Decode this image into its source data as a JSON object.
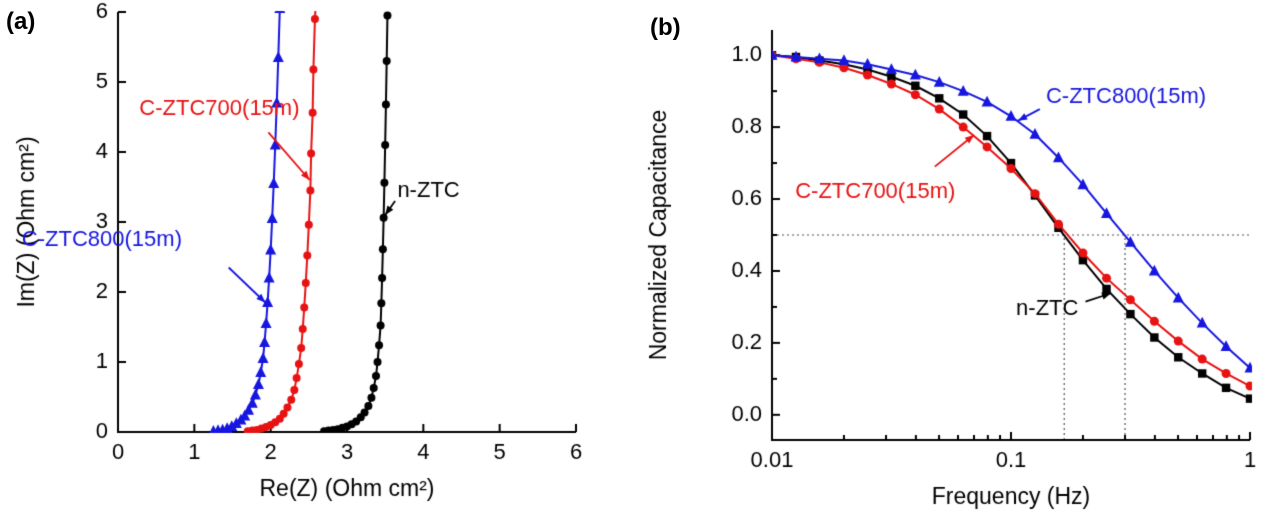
{
  "figure": {
    "background": "#ffffff"
  },
  "colors": {
    "blue": "#1616e0",
    "red": "#e81212",
    "black": "#000000",
    "guide": "#555555"
  },
  "chart_data": [
    {
      "type": "line",
      "panel_label": "(a)",
      "xlabel": "Re(Z) (Ohm cm²)",
      "ylabel": "Im(Z) (Ohm cm²)",
      "xscale": "linear",
      "xlim": [
        0,
        6
      ],
      "ylim": [
        0,
        6
      ],
      "xticks": [
        0,
        1,
        2,
        3,
        4,
        5,
        6
      ],
      "xtick_labels": [
        "0",
        "1",
        "2",
        "3",
        "4",
        "5",
        "6"
      ],
      "yticks": [
        0,
        1,
        2,
        3,
        4,
        5,
        6
      ],
      "ytick_labels": [
        "0",
        "1",
        "2",
        "3",
        "4",
        "5",
        "6"
      ],
      "grid": false,
      "legend": "none (direct labels with arrows)",
      "series": [
        {
          "name": "C-ZTC800(15m)",
          "color": "#1616e0",
          "marker": "triangle",
          "msize": 5,
          "points": [
            [
              1.25,
              0.01
            ],
            [
              1.31,
              0.02
            ],
            [
              1.37,
              0.03
            ],
            [
              1.43,
              0.05
            ],
            [
              1.49,
              0.08
            ],
            [
              1.55,
              0.12
            ],
            [
              1.61,
              0.17
            ],
            [
              1.66,
              0.23
            ],
            [
              1.71,
              0.31
            ],
            [
              1.76,
              0.41
            ],
            [
              1.8,
              0.53
            ],
            [
              1.84,
              0.68
            ],
            [
              1.87,
              0.85
            ],
            [
              1.9,
              1.05
            ],
            [
              1.92,
              1.28
            ],
            [
              1.94,
              1.55
            ],
            [
              1.96,
              1.85
            ],
            [
              1.98,
              2.2
            ],
            [
              2.0,
              2.6
            ],
            [
              2.02,
              3.05
            ],
            [
              2.04,
              3.55
            ],
            [
              2.06,
              4.1
            ],
            [
              2.08,
              4.7
            ],
            [
              2.1,
              5.35
            ],
            [
              2.12,
              6.05
            ]
          ]
        },
        {
          "name": "C-ZTC700(15m)",
          "color": "#e81212",
          "marker": "circle",
          "msize": 4,
          "points": [
            [
              1.7,
              0.01
            ],
            [
              1.76,
              0.02
            ],
            [
              1.82,
              0.03
            ],
            [
              1.88,
              0.05
            ],
            [
              1.94,
              0.07
            ],
            [
              2.0,
              0.1
            ],
            [
              2.06,
              0.14
            ],
            [
              2.12,
              0.19
            ],
            [
              2.17,
              0.26
            ],
            [
              2.22,
              0.35
            ],
            [
              2.27,
              0.46
            ],
            [
              2.31,
              0.6
            ],
            [
              2.34,
              0.77
            ],
            [
              2.37,
              0.97
            ],
            [
              2.4,
              1.2
            ],
            [
              2.42,
              1.47
            ],
            [
              2.44,
              1.78
            ],
            [
              2.46,
              2.13
            ],
            [
              2.48,
              2.52
            ],
            [
              2.5,
              2.96
            ],
            [
              2.52,
              3.45
            ],
            [
              2.53,
              3.98
            ],
            [
              2.55,
              4.56
            ],
            [
              2.56,
              5.18
            ],
            [
              2.58,
              5.9
            ],
            [
              2.59,
              6.1
            ]
          ]
        },
        {
          "name": "n-ZTC",
          "color": "#000000",
          "marker": "circle",
          "msize": 4,
          "points": [
            [
              2.7,
              0.01
            ],
            [
              2.76,
              0.02
            ],
            [
              2.82,
              0.03
            ],
            [
              2.88,
              0.04
            ],
            [
              2.94,
              0.06
            ],
            [
              3.0,
              0.08
            ],
            [
              3.06,
              0.11
            ],
            [
              3.12,
              0.15
            ],
            [
              3.18,
              0.21
            ],
            [
              3.23,
              0.28
            ],
            [
              3.28,
              0.37
            ],
            [
              3.32,
              0.49
            ],
            [
              3.35,
              0.63
            ],
            [
              3.38,
              0.8
            ],
            [
              3.4,
              1.0
            ],
            [
              3.42,
              1.24
            ],
            [
              3.44,
              1.52
            ],
            [
              3.45,
              1.84
            ],
            [
              3.46,
              2.2
            ],
            [
              3.47,
              2.61
            ],
            [
              3.48,
              3.06
            ],
            [
              3.49,
              3.56
            ],
            [
              3.5,
              4.1
            ],
            [
              3.51,
              4.68
            ],
            [
              3.52,
              5.3
            ],
            [
              3.53,
              5.95
            ]
          ]
        }
      ],
      "annotations": [
        {
          "text": "C-ZTC700(15m)",
          "color": "#e81212",
          "tx": 0.28,
          "ty": 4.62,
          "arrow": [
            1.97,
            4.28,
            2.51,
            3.6
          ]
        },
        {
          "text": "n-ZTC",
          "color": "#000000",
          "tx": 3.66,
          "ty": 3.45,
          "arrow": [
            3.63,
            3.3,
            3.5,
            3.1
          ]
        },
        {
          "text": "C-ZTC800(15m)",
          "color": "#1616e0",
          "tx": -1.26,
          "ty": 2.75,
          "arrow": [
            1.45,
            2.35,
            1.93,
            1.85
          ]
        }
      ]
    },
    {
      "type": "line",
      "panel_label": "(b)",
      "xlabel": "Frequency (Hz)",
      "ylabel": "Normalized Capacitance",
      "xscale": "log",
      "xlim": [
        0.01,
        1
      ],
      "ylim": [
        -0.07,
        1.07
      ],
      "xticks": [
        0.01,
        0.1,
        1
      ],
      "xtick_labels": [
        "0.01",
        "0.1",
        "1"
      ],
      "xminor": [
        0.02,
        0.03,
        0.04,
        0.05,
        0.06,
        0.07,
        0.08,
        0.09,
        0.2,
        0.3,
        0.4,
        0.5,
        0.6,
        0.7,
        0.8,
        0.9
      ],
      "yticks": [
        0.0,
        0.2,
        0.4,
        0.6,
        0.8,
        1.0
      ],
      "ytick_labels": [
        "0.0",
        "0.2",
        "0.4",
        "0.6",
        "0.8",
        "1.0"
      ],
      "yminor": [
        0.1,
        0.3,
        0.5,
        0.7,
        0.9
      ],
      "grid": false,
      "legend": "none (direct labels with arrows)",
      "guides": [
        {
          "type": "h",
          "y": 0.5,
          "x1": 0.01,
          "x2": 1.0
        },
        {
          "type": "v",
          "x": 0.167,
          "y1": -0.07,
          "y2": 0.5
        },
        {
          "type": "v",
          "x": 0.3,
          "y1": -0.07,
          "y2": 0.5
        }
      ],
      "series": [
        {
          "name": "n-ZTC",
          "color": "#000000",
          "marker": "square",
          "msize": 4.2,
          "points": [
            [
              0.01,
              1.0
            ],
            [
              0.0126,
              0.995
            ],
            [
              0.0158,
              0.985
            ],
            [
              0.02,
              0.975
            ],
            [
              0.0251,
              0.96
            ],
            [
              0.0316,
              0.94
            ],
            [
              0.0398,
              0.915
            ],
            [
              0.0501,
              0.88
            ],
            [
              0.0631,
              0.835
            ],
            [
              0.0794,
              0.775
            ],
            [
              0.1,
              0.7
            ],
            [
              0.126,
              0.61
            ],
            [
              0.158,
              0.52
            ],
            [
              0.2,
              0.43
            ],
            [
              0.251,
              0.35
            ],
            [
              0.316,
              0.28
            ],
            [
              0.398,
              0.215
            ],
            [
              0.501,
              0.16
            ],
            [
              0.631,
              0.115
            ],
            [
              0.794,
              0.075
            ],
            [
              1.0,
              0.045
            ]
          ]
        },
        {
          "name": "C-ZTC700(15m)",
          "color": "#e81212",
          "marker": "circle",
          "msize": 4.5,
          "points": [
            [
              0.01,
              1.0
            ],
            [
              0.0126,
              0.99
            ],
            [
              0.0158,
              0.98
            ],
            [
              0.02,
              0.965
            ],
            [
              0.0251,
              0.945
            ],
            [
              0.0316,
              0.92
            ],
            [
              0.0398,
              0.89
            ],
            [
              0.0501,
              0.85
            ],
            [
              0.0631,
              0.8
            ],
            [
              0.0794,
              0.745
            ],
            [
              0.1,
              0.685
            ],
            [
              0.126,
              0.615
            ],
            [
              0.158,
              0.53
            ],
            [
              0.2,
              0.45
            ],
            [
              0.251,
              0.38
            ],
            [
              0.316,
              0.32
            ],
            [
              0.398,
              0.26
            ],
            [
              0.501,
              0.205
            ],
            [
              0.631,
              0.155
            ],
            [
              0.794,
              0.115
            ],
            [
              1.0,
              0.08
            ]
          ]
        },
        {
          "name": "C-ZTC800(15m)",
          "color": "#1616e0",
          "marker": "triangle",
          "msize": 5,
          "points": [
            [
              0.01,
              1.0
            ],
            [
              0.0126,
              0.995
            ],
            [
              0.0158,
              0.99
            ],
            [
              0.02,
              0.985
            ],
            [
              0.0251,
              0.975
            ],
            [
              0.0316,
              0.96
            ],
            [
              0.0398,
              0.945
            ],
            [
              0.0501,
              0.925
            ],
            [
              0.0631,
              0.9
            ],
            [
              0.0794,
              0.87
            ],
            [
              0.1,
              0.83
            ],
            [
              0.126,
              0.78
            ],
            [
              0.158,
              0.715
            ],
            [
              0.2,
              0.64
            ],
            [
              0.251,
              0.56
            ],
            [
              0.316,
              0.48
            ],
            [
              0.398,
              0.4
            ],
            [
              0.501,
              0.325
            ],
            [
              0.631,
              0.255
            ],
            [
              0.794,
              0.19
            ],
            [
              1.0,
              0.13
            ]
          ]
        }
      ],
      "annotations": [
        {
          "text": "C-ZTC800(15m)",
          "color": "#1616e0",
          "tx": 0.14,
          "ty": 0.885,
          "arrow": [
            0.132,
            0.85,
            0.107,
            0.818
          ]
        },
        {
          "text": "C-ZTC700(15m)",
          "color": "#e81212",
          "tx": 0.0125,
          "ty": 0.62,
          "arrow": [
            0.048,
            0.69,
            0.07,
            0.778
          ]
        },
        {
          "text": "n-ZTC",
          "color": "#000000",
          "tx": 0.105,
          "ty": 0.295,
          "arrow": [
            0.205,
            0.315,
            0.262,
            0.338
          ]
        }
      ]
    }
  ]
}
